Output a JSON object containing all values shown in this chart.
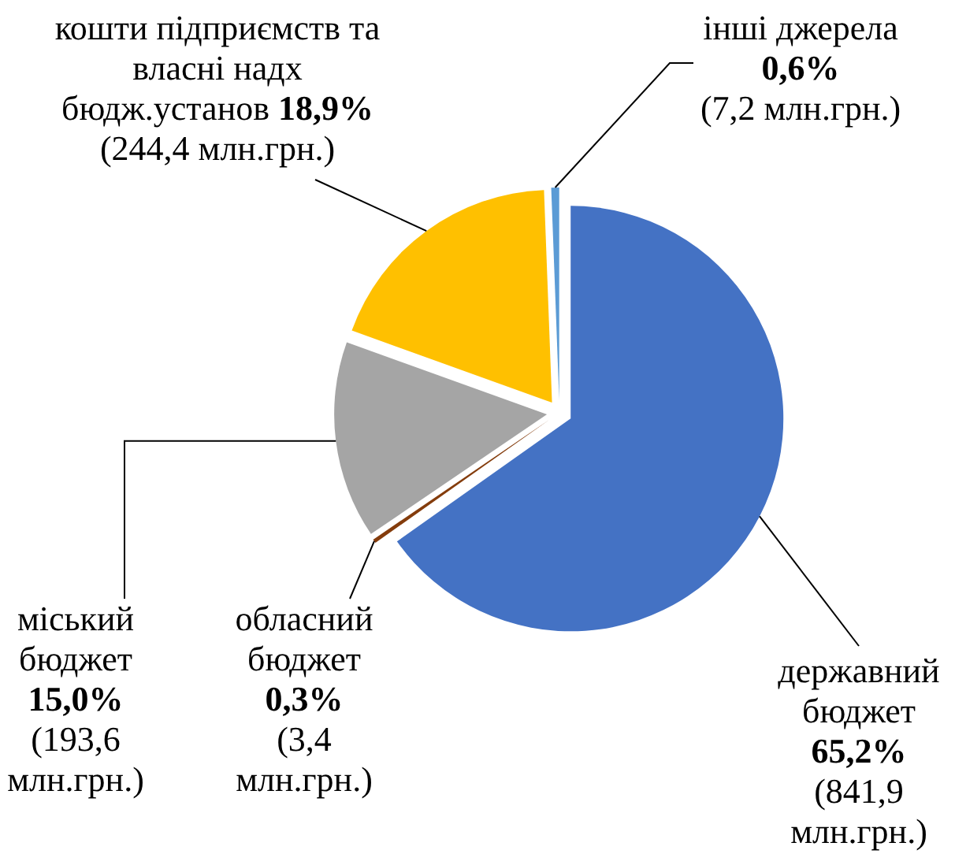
{
  "chart_data": {
    "type": "pie",
    "categories": [
      "державний бюджет",
      "обласний бюджет",
      "міський бюджет",
      "кошти підприємств та власні надх бюдж.установ",
      "інші джерела"
    ],
    "values": [
      65.2,
      0.3,
      15.0,
      18.9,
      0.6
    ],
    "colors": [
      "#4472c4",
      "#843c0c",
      "#a5a5a5",
      "#ffc000",
      "#5b9bd5"
    ],
    "value_labels": [
      "65,2%",
      "0,3%",
      "15,0%",
      "18,9%",
      "0,6%"
    ],
    "annotations": [
      "(841,9 млн.грн.)",
      "(3,4 млн.грн.)",
      "(193,6 млн.грн.)",
      "(244,4 млн.грн.)",
      "(7,2 млн.грн.)"
    ]
  }
}
